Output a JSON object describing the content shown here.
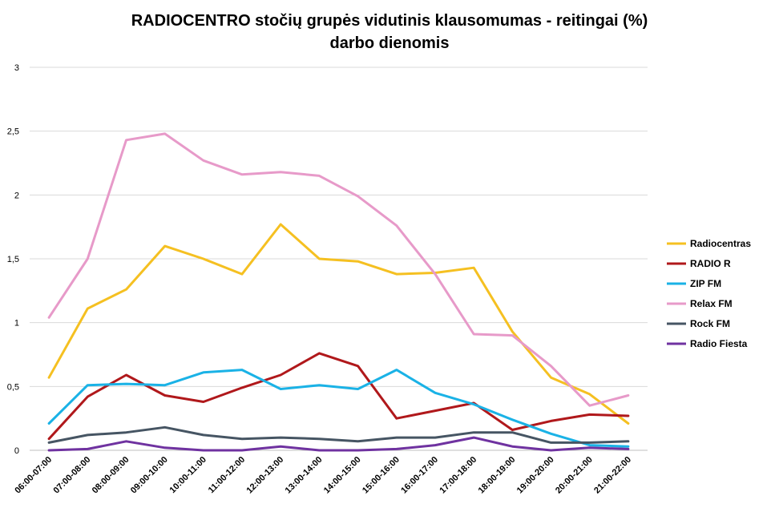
{
  "chart_data": {
    "type": "line",
    "title_line1": "RADIOCENTRO stočių grupės vidutinis klausomumas - reitingai (%)",
    "title_line2": "darbo dienomis",
    "xlabel": "",
    "ylabel": "",
    "ylim": [
      0,
      3
    ],
    "yticks": [
      "0",
      "0,5",
      "1",
      "1,5",
      "2",
      "2,5",
      "3"
    ],
    "grid": true,
    "legend_position": "right",
    "categories": [
      "06:00-07:00",
      "07:00-08:00",
      "08:00-09:00",
      "09:00-10:00",
      "10:00-11:00",
      "11:00-12:00",
      "12:00-13:00",
      "13:00-14:00",
      "14:00-15:00",
      "15:00-16:00",
      "16:00-17:00",
      "17:00-18:00",
      "18:00-19:00",
      "19:00-20:00",
      "20:00-21:00",
      "21:00-22:00"
    ],
    "series": [
      {
        "name": "Radiocentras",
        "color": "#f5c021",
        "values": [
          0.57,
          1.11,
          1.26,
          1.6,
          1.5,
          1.38,
          1.77,
          1.5,
          1.48,
          1.38,
          1.39,
          1.43,
          0.93,
          0.57,
          0.44,
          0.21
        ]
      },
      {
        "name": "RADIO R",
        "color": "#b0181b",
        "values": [
          0.09,
          0.42,
          0.59,
          0.43,
          0.38,
          0.49,
          0.59,
          0.76,
          0.66,
          0.25,
          0.31,
          0.37,
          0.16,
          0.23,
          0.28,
          0.27
        ]
      },
      {
        "name": "ZIP FM",
        "color": "#1ab2e6",
        "values": [
          0.21,
          0.51,
          0.52,
          0.51,
          0.61,
          0.63,
          0.48,
          0.51,
          0.48,
          0.63,
          0.45,
          0.36,
          0.24,
          0.13,
          0.04,
          0.03
        ]
      },
      {
        "name": "Relax FM",
        "color": "#e79ac9",
        "values": [
          1.04,
          1.5,
          2.43,
          2.48,
          2.27,
          2.16,
          2.18,
          2.15,
          1.99,
          1.76,
          1.38,
          0.91,
          0.9,
          0.66,
          0.35,
          0.43
        ]
      },
      {
        "name": "Rock FM",
        "color": "#465563",
        "values": [
          0.06,
          0.12,
          0.14,
          0.18,
          0.12,
          0.09,
          0.1,
          0.09,
          0.07,
          0.1,
          0.1,
          0.14,
          0.14,
          0.06,
          0.06,
          0.07
        ]
      },
      {
        "name": "Radio Fiesta",
        "color": "#6f32a0",
        "values": [
          0,
          0.01,
          0.07,
          0.02,
          0,
          0,
          0.03,
          0,
          0,
          0.01,
          0.04,
          0.1,
          0.03,
          0,
          0.02,
          0.01
        ]
      }
    ]
  }
}
